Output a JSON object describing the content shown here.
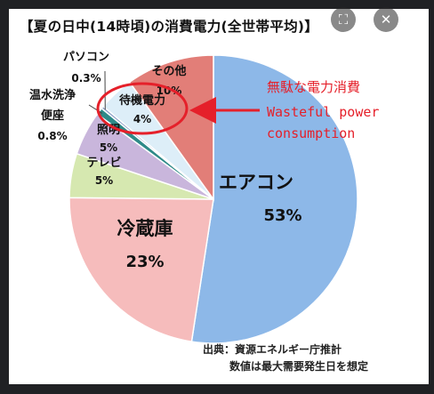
{
  "title": "【夏の日中(14時頃)の消費電力(全世帯平均)】",
  "annotation": {
    "jp": "無駄な電力消費",
    "en_line1": "Wasteful power",
    "en_line2": "consumption"
  },
  "source": {
    "line1": "出典：資源エネルギー庁推計",
    "line2": "数値は最大需要発生日を想定"
  },
  "overlay_icons": [
    "fullscreen-icon",
    "close-icon"
  ],
  "chart_data": {
    "type": "pie",
    "title": "【夏の日中(14時頃)の消費電力(全世帯平均)】",
    "slices": [
      {
        "name": "エアコン",
        "value": 53,
        "label": "53%",
        "color": "#8db8e8"
      },
      {
        "name": "冷蔵庫",
        "value": 23,
        "label": "23%",
        "color": "#f6bcbc"
      },
      {
        "name": "テレビ",
        "value": 5,
        "label": "5%",
        "color": "#d6e8b0"
      },
      {
        "name": "照明",
        "value": 5,
        "label": "5%",
        "color": "#c9b6dc"
      },
      {
        "name": "温水洗浄便座",
        "value": 0.8,
        "label": "0.8%",
        "color": "#2e8a88"
      },
      {
        "name": "パソコン",
        "value": 0.3,
        "label": "0.3%",
        "color": "#8b9fc7"
      },
      {
        "name": "待機電力",
        "value": 4,
        "label": "4%",
        "color": "#ddeef8"
      },
      {
        "name": "その他",
        "value": 10,
        "label": "10%",
        "color": "#e27e78"
      }
    ]
  }
}
